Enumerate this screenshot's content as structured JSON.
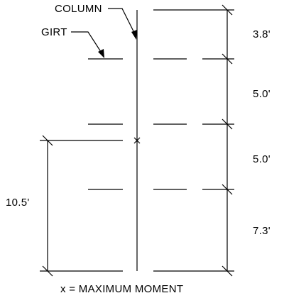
{
  "labels": {
    "column": "COLUMN",
    "girt": "GIRT",
    "note": "x =  MAXIMUM  MOMENT"
  },
  "right_dimensions": [
    "3.8'",
    "5.0'",
    "5.0'",
    "7.3'"
  ],
  "left_dimension": "10.5'",
  "max_moment_marker": "x"
}
